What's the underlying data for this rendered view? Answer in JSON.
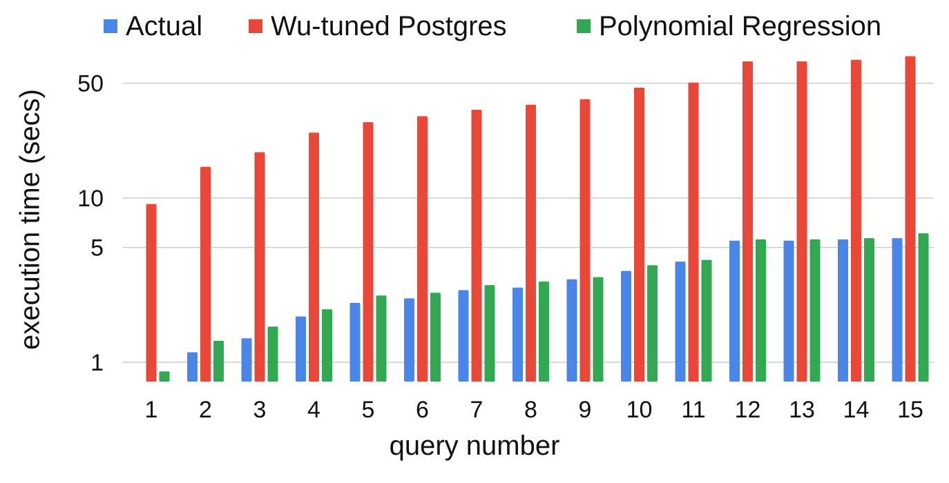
{
  "chart_data": {
    "type": "bar",
    "title": "",
    "xlabel": "query number",
    "ylabel": "execution time (secs)",
    "yscale": "log",
    "ylim": [
      0.85,
      100
    ],
    "yticks": [
      1,
      5,
      10,
      50
    ],
    "grid": true,
    "legend_position": "top",
    "categories": [
      "1",
      "2",
      "3",
      "4",
      "5",
      "6",
      "7",
      "8",
      "9",
      "10",
      "11",
      "12",
      "13",
      "14",
      "15"
    ],
    "series": [
      {
        "name": "Actual",
        "color": "#4a86e8",
        "values": [
          null,
          1.15,
          1.4,
          1.9,
          2.3,
          2.45,
          2.75,
          2.85,
          3.2,
          3.6,
          4.1,
          5.5,
          5.5,
          5.6,
          5.7
        ]
      },
      {
        "name": "Wu-tuned Postgres",
        "color": "#e94738",
        "values": [
          9.2,
          15.5,
          19,
          25,
          29,
          31.5,
          34.5,
          37,
          40,
          47,
          50.5,
          68,
          68,
          69.5,
          73
        ]
      },
      {
        "name": "Polynomial Regression",
        "color": "#33a853",
        "values": [
          0.88,
          1.35,
          1.65,
          2.1,
          2.55,
          2.65,
          2.95,
          3.1,
          3.3,
          3.9,
          4.2,
          5.6,
          5.6,
          5.7,
          6.1
        ]
      }
    ]
  }
}
